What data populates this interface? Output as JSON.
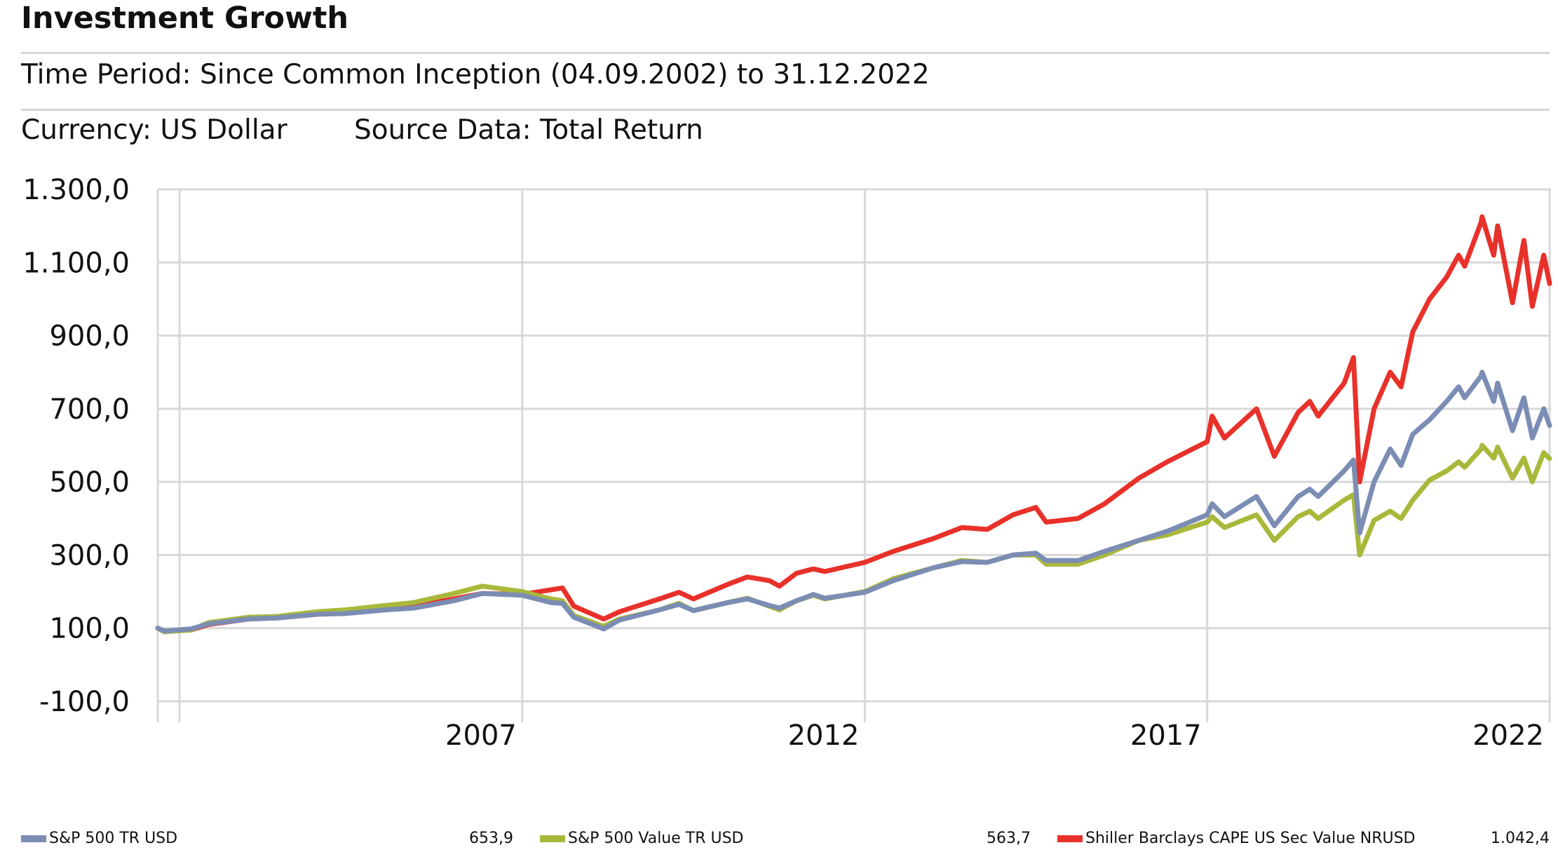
{
  "header": {
    "title": "Investment Growth",
    "time_period": "Time Period: Since Common Inception (04.09.2002) to 31.12.2022",
    "currency": "Currency: US Dollar",
    "source": "Source Data: Total Return"
  },
  "legend": [
    {
      "name": "S&P 500 TR USD",
      "value": "653,9",
      "color": "#7b8db4"
    },
    {
      "name": "S&P 500 Value TR USD",
      "value": "563,7",
      "color": "#a9b83b"
    },
    {
      "name": "Shiller Barclays CAPE US Sec Value NRUSD",
      "value": "1.042,4",
      "color": "#e8312a"
    }
  ],
  "chart_data": {
    "type": "line",
    "title": "Investment Growth",
    "xlabel": "",
    "ylabel": "",
    "ylim": [
      -100,
      1300
    ],
    "xlim": [
      "2002-09-04",
      "2022-12-31"
    ],
    "y_ticks": [
      "1.300,0",
      "1.100,0",
      "900,0",
      "700,0",
      "500,0",
      "300,0",
      "100,0",
      "-100,0"
    ],
    "y_tick_values": [
      1300,
      1100,
      900,
      700,
      500,
      300,
      100,
      -100
    ],
    "x_ticks": [
      "2007",
      "2012",
      "2017",
      "2022"
    ],
    "x_tick_dates": [
      "2007-12-31",
      "2012-12-31",
      "2017-12-31",
      "2022-12-31"
    ],
    "grid": true,
    "legend_position": "bottom",
    "series": [
      {
        "name": "Shiller Barclays CAPE US Sec Value NRUSD",
        "color": "#e8312a",
        "points": [
          [
            "2002-09-04",
            100
          ],
          [
            "2002-10-09",
            92
          ],
          [
            "2003-03-01",
            95
          ],
          [
            "2003-06-01",
            110
          ],
          [
            "2004-01-01",
            125
          ],
          [
            "2004-06-01",
            128
          ],
          [
            "2005-01-01",
            138
          ],
          [
            "2005-06-01",
            143
          ],
          [
            "2006-01-01",
            155
          ],
          [
            "2006-06-01",
            160
          ],
          [
            "2007-01-01",
            180
          ],
          [
            "2007-06-01",
            195
          ],
          [
            "2007-12-31",
            192
          ],
          [
            "2008-06-01",
            205
          ],
          [
            "2008-08-01",
            210
          ],
          [
            "2008-10-01",
            160
          ],
          [
            "2009-03-09",
            125
          ],
          [
            "2009-06-01",
            145
          ],
          [
            "2010-01-01",
            180
          ],
          [
            "2010-04-15",
            198
          ],
          [
            "2010-07-01",
            180
          ],
          [
            "2011-01-01",
            220
          ],
          [
            "2011-04-15",
            240
          ],
          [
            "2011-08-10",
            230
          ],
          [
            "2011-10-03",
            215
          ],
          [
            "2012-01-01",
            250
          ],
          [
            "2012-04-01",
            262
          ],
          [
            "2012-06-01",
            255
          ],
          [
            "2012-12-31",
            280
          ],
          [
            "2013-06-01",
            310
          ],
          [
            "2013-12-31",
            345
          ],
          [
            "2014-06-01",
            375
          ],
          [
            "2014-10-15",
            370
          ],
          [
            "2015-03-01",
            410
          ],
          [
            "2015-07-01",
            430
          ],
          [
            "2015-08-25",
            390
          ],
          [
            "2016-02-11",
            400
          ],
          [
            "2016-07-01",
            440
          ],
          [
            "2016-12-31",
            510
          ],
          [
            "2017-06-01",
            555
          ],
          [
            "2017-12-31",
            610
          ],
          [
            "2018-01-26",
            680
          ],
          [
            "2018-04-02",
            620
          ],
          [
            "2018-09-20",
            700
          ],
          [
            "2018-12-24",
            570
          ],
          [
            "2019-04-30",
            690
          ],
          [
            "2019-07-01",
            720
          ],
          [
            "2019-08-15",
            680
          ],
          [
            "2019-12-31",
            770
          ],
          [
            "2020-02-19",
            840
          ],
          [
            "2020-03-23",
            500
          ],
          [
            "2020-06-08",
            700
          ],
          [
            "2020-09-02",
            800
          ],
          [
            "2020-10-30",
            760
          ],
          [
            "2020-12-31",
            910
          ],
          [
            "2021-03-31",
            1000
          ],
          [
            "2021-06-30",
            1060
          ],
          [
            "2021-09-02",
            1120
          ],
          [
            "2021-10-04",
            1090
          ],
          [
            "2021-12-31",
            1210
          ],
          [
            "2022-01-05",
            1225
          ],
          [
            "2022-03-08",
            1120
          ],
          [
            "2022-03-29",
            1200
          ],
          [
            "2022-06-16",
            990
          ],
          [
            "2022-08-16",
            1160
          ],
          [
            "2022-09-30",
            980
          ],
          [
            "2022-11-30",
            1120
          ],
          [
            "2022-12-31",
            1042.4
          ]
        ]
      },
      {
        "name": "S&P 500 Value TR USD",
        "color": "#a9b83b",
        "points": [
          [
            "2002-09-04",
            100
          ],
          [
            "2002-10-09",
            90
          ],
          [
            "2003-03-01",
            95
          ],
          [
            "2003-06-01",
            115
          ],
          [
            "2004-01-01",
            130
          ],
          [
            "2004-06-01",
            132
          ],
          [
            "2005-01-01",
            145
          ],
          [
            "2005-06-01",
            150
          ],
          [
            "2006-01-01",
            162
          ],
          [
            "2006-06-01",
            170
          ],
          [
            "2007-01-01",
            195
          ],
          [
            "2007-06-01",
            215
          ],
          [
            "2007-12-31",
            200
          ],
          [
            "2008-06-01",
            180
          ],
          [
            "2008-08-01",
            175
          ],
          [
            "2008-10-01",
            135
          ],
          [
            "2009-03-09",
            105
          ],
          [
            "2009-06-01",
            125
          ],
          [
            "2010-01-01",
            150
          ],
          [
            "2010-04-15",
            168
          ],
          [
            "2010-07-01",
            148
          ],
          [
            "2011-01-01",
            170
          ],
          [
            "2011-04-15",
            182
          ],
          [
            "2011-08-10",
            160
          ],
          [
            "2011-10-03",
            150
          ],
          [
            "2012-01-01",
            175
          ],
          [
            "2012-04-01",
            190
          ],
          [
            "2012-06-01",
            180
          ],
          [
            "2012-12-31",
            200
          ],
          [
            "2013-06-01",
            235
          ],
          [
            "2013-12-31",
            265
          ],
          [
            "2014-06-01",
            285
          ],
          [
            "2014-10-15",
            280
          ],
          [
            "2015-03-01",
            300
          ],
          [
            "2015-07-01",
            300
          ],
          [
            "2015-08-25",
            275
          ],
          [
            "2016-02-11",
            275
          ],
          [
            "2016-07-01",
            300
          ],
          [
            "2016-12-31",
            340
          ],
          [
            "2017-06-01",
            355
          ],
          [
            "2017-12-31",
            390
          ],
          [
            "2018-01-26",
            405
          ],
          [
            "2018-04-02",
            375
          ],
          [
            "2018-09-20",
            410
          ],
          [
            "2018-12-24",
            340
          ],
          [
            "2019-04-30",
            405
          ],
          [
            "2019-07-01",
            420
          ],
          [
            "2019-08-15",
            400
          ],
          [
            "2019-12-31",
            450
          ],
          [
            "2020-02-19",
            465
          ],
          [
            "2020-03-23",
            300
          ],
          [
            "2020-06-08",
            395
          ],
          [
            "2020-09-02",
            420
          ],
          [
            "2020-10-30",
            400
          ],
          [
            "2020-12-31",
            450
          ],
          [
            "2021-03-31",
            505
          ],
          [
            "2021-06-30",
            530
          ],
          [
            "2021-09-02",
            555
          ],
          [
            "2021-10-04",
            540
          ],
          [
            "2021-12-31",
            590
          ],
          [
            "2022-01-05",
            600
          ],
          [
            "2022-03-08",
            565
          ],
          [
            "2022-03-29",
            595
          ],
          [
            "2022-06-16",
            510
          ],
          [
            "2022-08-16",
            565
          ],
          [
            "2022-09-30",
            500
          ],
          [
            "2022-11-30",
            580
          ],
          [
            "2022-12-31",
            563.7
          ]
        ]
      },
      {
        "name": "S&P 500 TR USD",
        "color": "#7b8db4",
        "points": [
          [
            "2002-09-04",
            100
          ],
          [
            "2002-10-09",
            92
          ],
          [
            "2003-03-01",
            98
          ],
          [
            "2003-06-01",
            112
          ],
          [
            "2004-01-01",
            125
          ],
          [
            "2004-06-01",
            128
          ],
          [
            "2005-01-01",
            138
          ],
          [
            "2005-06-01",
            140
          ],
          [
            "2006-01-01",
            150
          ],
          [
            "2006-06-01",
            155
          ],
          [
            "2007-01-01",
            175
          ],
          [
            "2007-06-01",
            195
          ],
          [
            "2007-12-31",
            190
          ],
          [
            "2008-06-01",
            170
          ],
          [
            "2008-08-01",
            168
          ],
          [
            "2008-10-01",
            130
          ],
          [
            "2009-03-09",
            98
          ],
          [
            "2009-06-01",
            122
          ],
          [
            "2010-01-01",
            150
          ],
          [
            "2010-04-15",
            165
          ],
          [
            "2010-07-01",
            148
          ],
          [
            "2011-01-01",
            170
          ],
          [
            "2011-04-15",
            180
          ],
          [
            "2011-08-10",
            162
          ],
          [
            "2011-10-03",
            155
          ],
          [
            "2012-01-01",
            175
          ],
          [
            "2012-04-01",
            192
          ],
          [
            "2012-06-01",
            182
          ],
          [
            "2012-12-31",
            198
          ],
          [
            "2013-06-01",
            230
          ],
          [
            "2013-12-31",
            265
          ],
          [
            "2014-06-01",
            282
          ],
          [
            "2014-10-15",
            280
          ],
          [
            "2015-03-01",
            300
          ],
          [
            "2015-07-01",
            305
          ],
          [
            "2015-08-25",
            285
          ],
          [
            "2016-02-11",
            285
          ],
          [
            "2016-07-01",
            310
          ],
          [
            "2016-12-31",
            340
          ],
          [
            "2017-06-01",
            365
          ],
          [
            "2017-12-31",
            410
          ],
          [
            "2018-01-26",
            440
          ],
          [
            "2018-04-02",
            405
          ],
          [
            "2018-09-20",
            460
          ],
          [
            "2018-12-24",
            380
          ],
          [
            "2019-04-30",
            460
          ],
          [
            "2019-07-01",
            480
          ],
          [
            "2019-08-15",
            460
          ],
          [
            "2019-12-31",
            530
          ],
          [
            "2020-02-19",
            560
          ],
          [
            "2020-03-23",
            360
          ],
          [
            "2020-06-08",
            500
          ],
          [
            "2020-09-02",
            590
          ],
          [
            "2020-10-30",
            545
          ],
          [
            "2020-12-31",
            630
          ],
          [
            "2021-03-31",
            670
          ],
          [
            "2021-06-30",
            720
          ],
          [
            "2021-09-02",
            760
          ],
          [
            "2021-10-04",
            730
          ],
          [
            "2021-12-31",
            790
          ],
          [
            "2022-01-05",
            800
          ],
          [
            "2022-03-08",
            720
          ],
          [
            "2022-03-29",
            770
          ],
          [
            "2022-06-16",
            640
          ],
          [
            "2022-08-16",
            730
          ],
          [
            "2022-09-30",
            620
          ],
          [
            "2022-11-30",
            700
          ],
          [
            "2022-12-31",
            653.9
          ]
        ]
      }
    ]
  }
}
